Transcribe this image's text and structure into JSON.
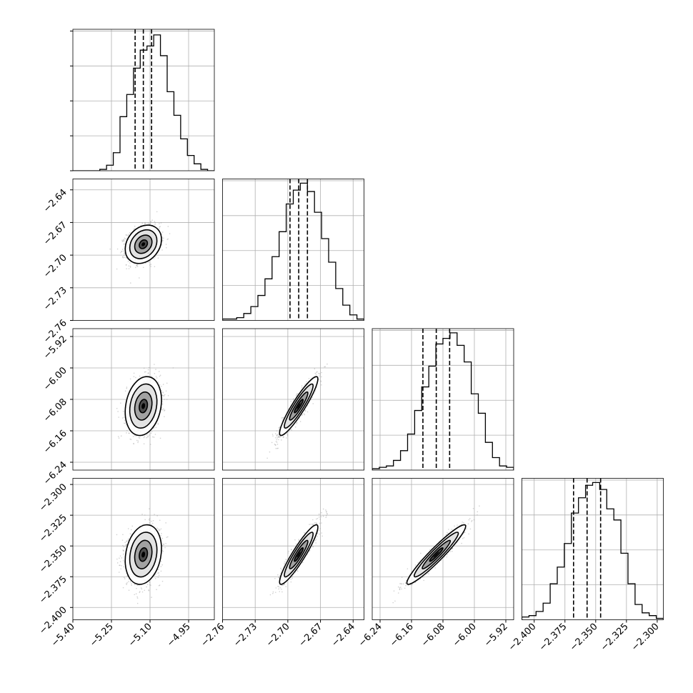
{
  "chart_data": {
    "type": "corner",
    "n_params": 4,
    "params": [
      {
        "range": [
          -5.4,
          -4.85
        ],
        "median": -5.126,
        "q16": -5.158,
        "q84": -5.094,
        "ticks": [
          -5.4,
          -5.25,
          -5.1,
          -4.95
        ],
        "tick_labels": [
          "−5.40",
          "−5.25",
          "−5.10",
          "−4.95"
        ]
      },
      {
        "range": [
          -2.76,
          -2.63
        ],
        "median": -2.69,
        "q16": -2.698,
        "q84": -2.682,
        "ticks": [
          -2.76,
          -2.73,
          -2.7,
          -2.67,
          -2.64
        ],
        "tick_labels": [
          "−2.76",
          "−2.73",
          "−2.70",
          "−2.67",
          "−2.64"
        ]
      },
      {
        "range": [
          -6.26,
          -5.9
        ],
        "median": -6.097,
        "q16": -6.131,
        "q84": -6.063,
        "ticks": [
          -6.24,
          -6.16,
          -6.08,
          -6.0,
          -5.92
        ],
        "tick_labels": [
          "−6.24",
          "−6.16",
          "−6.08",
          "−6.00",
          "−5.92"
        ]
      },
      {
        "range": [
          -2.41,
          -2.295
        ],
        "median": -2.357,
        "q16": -2.368,
        "q84": -2.346,
        "ticks": [
          -2.4,
          -2.375,
          -2.35,
          -2.325,
          -2.3
        ],
        "tick_labels": [
          "−2.400",
          "−2.375",
          "−2.350",
          "−2.325",
          "−2.300"
        ]
      }
    ],
    "histograms": [
      [
        0,
        0,
        0,
        0,
        0.01,
        0.04,
        0.13,
        0.39,
        0.55,
        0.74,
        0.87,
        0.9,
        0.98,
        0.83,
        0.57,
        0.4,
        0.23,
        0.11,
        0.05,
        0.01,
        0
      ],
      [
        0.01,
        0.01,
        0.02,
        0.05,
        0.1,
        0.18,
        0.3,
        0.46,
        0.64,
        0.84,
        0.94,
        0.99,
        0.93,
        0.78,
        0.59,
        0.42,
        0.23,
        0.11,
        0.04,
        0.01
      ],
      [
        0.01,
        0.02,
        0.03,
        0.07,
        0.14,
        0.26,
        0.43,
        0.6,
        0.75,
        0.91,
        0.95,
        0.99,
        0.9,
        0.78,
        0.55,
        0.41,
        0.2,
        0.09,
        0.03,
        0.02
      ],
      [
        0.02,
        0.03,
        0.06,
        0.12,
        0.26,
        0.38,
        0.55,
        0.77,
        0.88,
        0.97,
        0.99,
        0.94,
        0.8,
        0.72,
        0.48,
        0.26,
        0.11,
        0.05,
        0.03,
        0.01
      ]
    ],
    "correlations": [
      [
        1,
        0.25,
        0.2,
        0.2
      ],
      [
        0.25,
        1,
        0.92,
        0.92
      ],
      [
        0.2,
        0.92,
        1,
        0.95
      ],
      [
        0.2,
        0.92,
        0.95,
        1
      ]
    ],
    "grid": true,
    "quantile_lines": "dashed"
  }
}
